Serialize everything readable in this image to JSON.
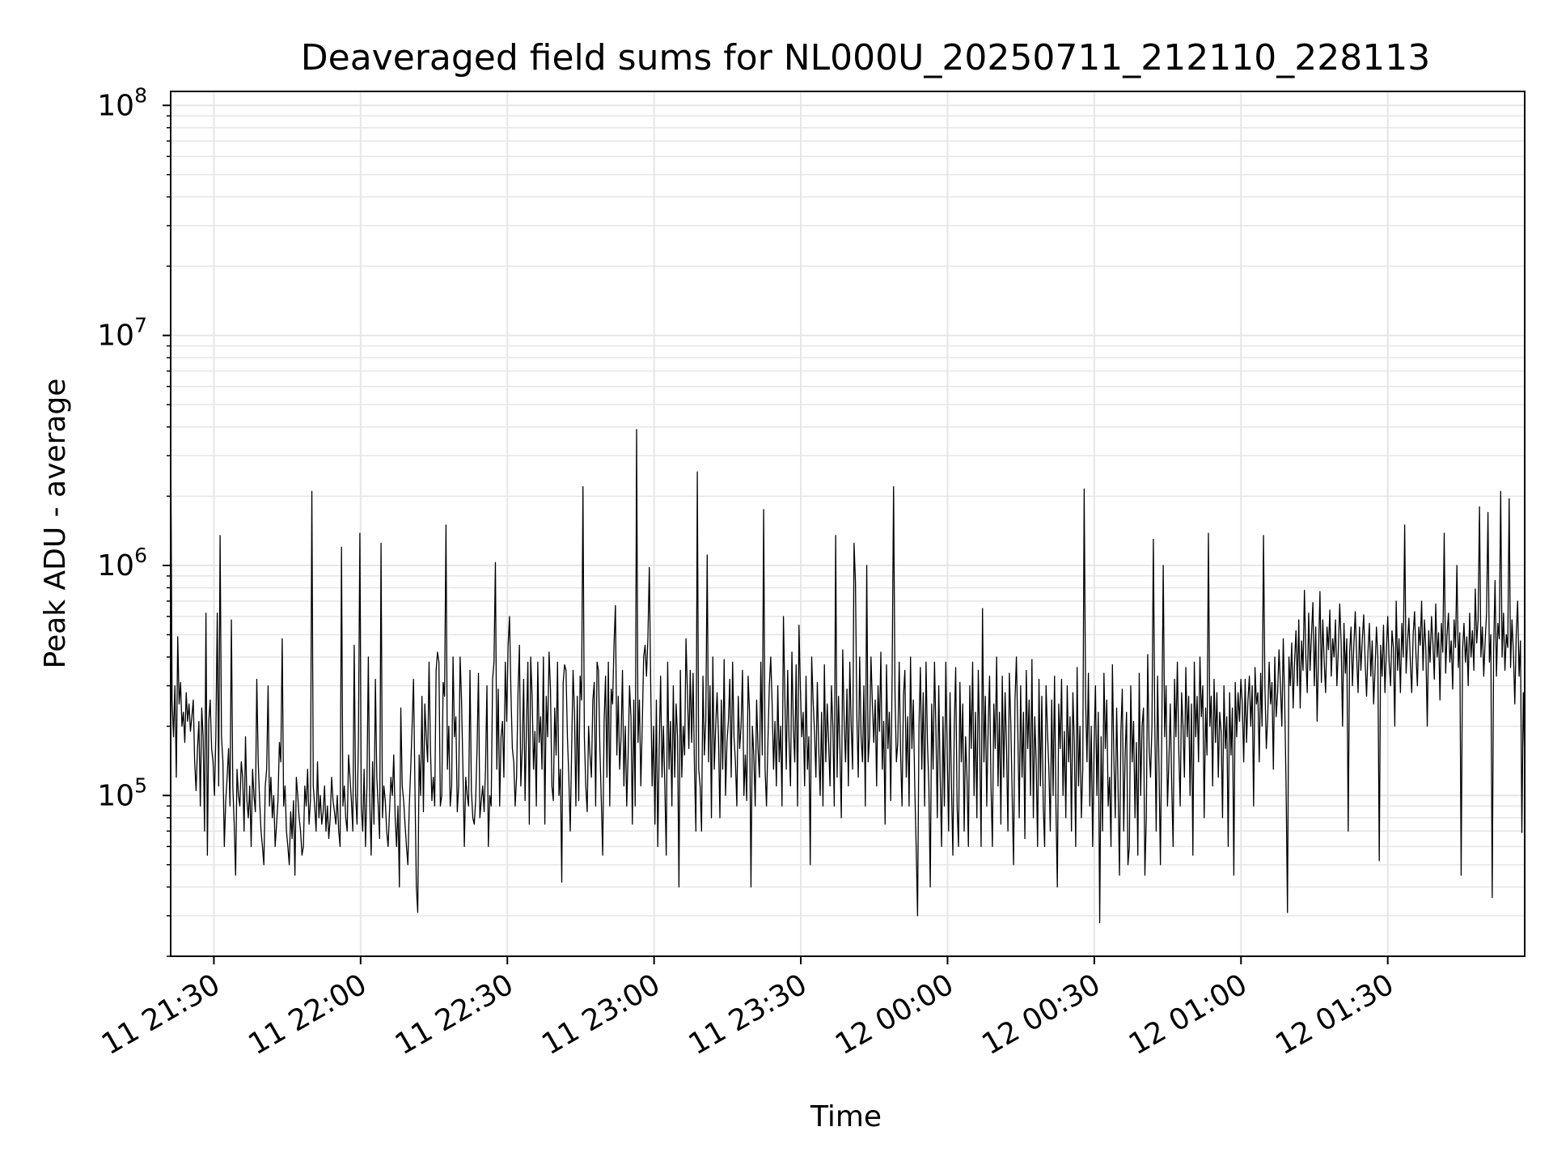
{
  "chart_data": {
    "type": "line",
    "title": "Deaveraged field sums for NL000U_20250711_212110_228113",
    "xlabel": "Time",
    "ylabel": "Peak ADU - average",
    "x_range": [
      "2025-07-11T21:21:10",
      "2025-07-12T01:58:00"
    ],
    "y_range": [
      20000,
      115000000
    ],
    "y_scale": "log",
    "grid": {
      "major": true,
      "minor_y": true,
      "color": "#e6e6e6"
    },
    "line_color": "#000000",
    "x_ticks": [
      {
        "value": "2025-07-11T21:30:00",
        "label": "11 21:30"
      },
      {
        "value": "2025-07-11T22:00:00",
        "label": "11 22:00"
      },
      {
        "value": "2025-07-11T22:30:00",
        "label": "11 22:30"
      },
      {
        "value": "2025-07-11T23:00:00",
        "label": "11 23:00"
      },
      {
        "value": "2025-07-11T23:30:00",
        "label": "11 23:30"
      },
      {
        "value": "2025-07-12T00:00:00",
        "label": "12 00:00"
      },
      {
        "value": "2025-07-12T00:30:00",
        "label": "12 00:30"
      },
      {
        "value": "2025-07-12T01:00:00",
        "label": "12 01:00"
      },
      {
        "value": "2025-07-12T01:30:00",
        "label": "12 01:30"
      }
    ],
    "y_ticks": [
      {
        "value": 100000,
        "base": "10",
        "exp": "5"
      },
      {
        "value": 1000000,
        "base": "10",
        "exp": "6"
      },
      {
        "value": 10000000,
        "base": "10",
        "exp": "7"
      },
      {
        "value": 100000000,
        "base": "10",
        "exp": "8"
      }
    ],
    "series": [
      {
        "x_start": "2025-07-11T21:21:10",
        "x_end": "2025-07-12T01:58:00",
        "values": [
          4300000,
          260000,
          180000,
          300000,
          120000,
          490000,
          250000,
          310000,
          200000,
          230000,
          170000,
          280000,
          210000,
          250000,
          190000,
          220000,
          260000,
          140000,
          105000,
          160000,
          210000,
          90000,
          240000,
          180000,
          70000,
          620000,
          55000,
          210000,
          260000,
          160000,
          140000,
          100000,
          180000,
          620000,
          110000,
          1350000,
          180000,
          140000,
          60000,
          95000,
          120000,
          160000,
          90000,
          580000,
          110000,
          75000,
          45000,
          130000,
          100000,
          90000,
          140000,
          120000,
          70000,
          180000,
          95000,
          80000,
          110000,
          60000,
          130000,
          100000,
          85000,
          320000,
          140000,
          95000,
          70000,
          60000,
          50000,
          110000,
          130000,
          300000,
          90000,
          120000,
          80000,
          100000,
          60000,
          75000,
          95000,
          170000,
          140000,
          480000,
          90000,
          110000,
          70000,
          60000,
          50000,
          85000,
          65000,
          95000,
          45000,
          120000,
          100000,
          80000,
          70000,
          55000,
          60000,
          110000,
          90000,
          130000,
          75000,
          95000,
          2100000,
          110000,
          90000,
          70000,
          140000,
          80000,
          100000,
          75000,
          85000,
          110000,
          70000,
          90000,
          65000,
          80000,
          120000,
          95000,
          85000,
          75000,
          100000,
          70000,
          60000,
          1200000,
          90000,
          110000,
          80000,
          70000,
          150000,
          120000,
          95000,
          70000,
          450000,
          100000,
          75000,
          180000,
          1380000,
          90000,
          70000,
          130000,
          60000,
          110000,
          400000,
          95000,
          55000,
          140000,
          75000,
          320000,
          120000,
          90000,
          65000,
          1250000,
          80000,
          110000,
          95000,
          70000,
          60000,
          85000,
          120000,
          100000,
          150000,
          80000,
          60000,
          90000,
          40000,
          240000,
          110000,
          95000,
          75000,
          60000,
          50000,
          90000,
          130000,
          200000,
          320000,
          110000,
          40000,
          31000,
          150000,
          100000,
          270000,
          85000,
          250000,
          180000,
          140000,
          380000,
          160000,
          95000,
          120000,
          90000,
          350000,
          420000,
          380000,
          90000,
          100000,
          310000,
          270000,
          1500000,
          130000,
          200000,
          90000,
          110000,
          400000,
          180000,
          220000,
          85000,
          110000,
          400000,
          260000,
          130000,
          60000,
          120000,
          100000,
          90000,
          350000,
          105000,
          80000,
          75000,
          95000,
          160000,
          340000,
          80000,
          95000,
          110000,
          85000,
          130000,
          300000,
          60000,
          100000,
          90000,
          320000,
          380000,
          1030000,
          130000,
          290000,
          90000,
          180000,
          210000,
          120000,
          380000,
          210000,
          450000,
          600000,
          280000,
          160000,
          140000,
          90000,
          120000,
          280000,
          450000,
          110000,
          160000,
          320000,
          95000,
          200000,
          380000,
          75000,
          400000,
          270000,
          130000,
          190000,
          90000,
          380000,
          170000,
          220000,
          130000,
          400000,
          75000,
          270000,
          180000,
          420000,
          290000,
          110000,
          95000,
          240000,
          150000,
          380000,
          100000,
          130000,
          42000,
          310000,
          370000,
          350000,
          180000,
          120000,
          70000,
          160000,
          350000,
          230000,
          90000,
          270000,
          95000,
          330000,
          260000,
          2200000,
          180000,
          110000,
          85000,
          200000,
          150000,
          120000,
          260000,
          310000,
          90000,
          380000,
          350000,
          160000,
          95000,
          55000,
          210000,
          330000,
          120000,
          380000,
          90000,
          290000,
          250000,
          450000,
          670000,
          150000,
          270000,
          130000,
          180000,
          350000,
          110000,
          200000,
          90000,
          150000,
          300000,
          220000,
          75000,
          260000,
          90000,
          3900000,
          170000,
          260000,
          110000,
          200000,
          400000,
          450000,
          330000,
          480000,
          980000,
          300000,
          110000,
          200000,
          75000,
          260000,
          60000,
          160000,
          330000,
          120000,
          200000,
          110000,
          55000,
          380000,
          130000,
          210000,
          90000,
          300000,
          120000,
          250000,
          180000,
          40000,
          350000,
          120000,
          200000,
          150000,
          480000,
          280000,
          160000,
          350000,
          170000,
          340000,
          130000,
          70000,
          2550000,
          130000,
          110000,
          70000,
          330000,
          150000,
          210000,
          1110000,
          140000,
          300000,
          80000,
          400000,
          130000,
          200000,
          280000,
          180000,
          80000,
          260000,
          130000,
          390000,
          100000,
          170000,
          210000,
          320000,
          120000,
          380000,
          180000,
          140000,
          90000,
          270000,
          160000,
          200000,
          350000,
          100000,
          150000,
          95000,
          330000,
          230000,
          40000,
          200000,
          150000,
          90000,
          260000,
          160000,
          120000,
          380000,
          150000,
          1750000,
          130000,
          90000,
          170000,
          300000,
          400000,
          250000,
          130000,
          210000,
          110000,
          300000,
          140000,
          200000,
          90000,
          600000,
          270000,
          130000,
          350000,
          170000,
          110000,
          420000,
          200000,
          140000,
          370000,
          90000,
          550000,
          290000,
          180000,
          230000,
          110000,
          330000,
          130000,
          180000,
          50000,
          400000,
          260000,
          190000,
          120000,
          310000,
          160000,
          100000,
          230000,
          90000,
          370000,
          140000,
          250000,
          170000,
          110000,
          300000,
          200000,
          90000,
          1350000,
          120000,
          270000,
          160000,
          80000,
          430000,
          210000,
          140000,
          290000,
          110000,
          380000,
          200000,
          130000,
          1250000,
          850000,
          220000,
          120000,
          400000,
          180000,
          140000,
          300000,
          90000,
          1000000,
          140000,
          180000,
          400000,
          250000,
          170000,
          260000,
          110000,
          300000,
          190000,
          420000,
          130000,
          210000,
          75000,
          370000,
          160000,
          230000,
          95000,
          340000,
          2200000,
          280000,
          140000,
          170000,
          380000,
          150000,
          90000,
          270000,
          350000,
          120000,
          220000,
          90000,
          400000,
          160000,
          260000,
          110000,
          60000,
          30000,
          200000,
          360000,
          130000,
          280000,
          90000,
          380000,
          170000,
          110000,
          40000,
          250000,
          130000,
          380000,
          190000,
          80000,
          300000,
          120000,
          60000,
          220000,
          90000,
          380000,
          150000,
          70000,
          280000,
          110000,
          55000,
          200000,
          360000,
          90000,
          60000,
          310000,
          140000,
          250000,
          70000,
          180000,
          120000,
          60000,
          300000,
          160000,
          380000,
          100000,
          230000,
          80000,
          350000,
          170000,
          60000,
          650000,
          140000,
          270000,
          90000,
          200000,
          330000,
          110000,
          60000,
          250000,
          160000,
          400000,
          110000,
          230000,
          75000,
          330000,
          120000,
          280000,
          160000,
          70000,
          340000,
          210000,
          100000,
          50000,
          260000,
          400000,
          190000,
          80000,
          300000,
          120000,
          230000,
          65000,
          350000,
          160000,
          260000,
          100000,
          390000,
          80000,
          220000,
          140000,
          60000,
          320000,
          110000,
          270000,
          90000,
          60000,
          300000,
          190000,
          130000,
          70000,
          260000,
          100000,
          330000,
          90000,
          40000,
          250000,
          160000,
          320000,
          100000,
          190000,
          80000,
          300000,
          140000,
          220000,
          70000,
          280000,
          170000,
          60000,
          360000,
          110000,
          200000,
          80000,
          130000,
          2150000,
          260000,
          140000,
          340000,
          90000,
          200000,
          60000,
          160000,
          300000,
          100000,
          230000,
          28000,
          180000,
          70000,
          340000,
          160000,
          260000,
          90000,
          120000,
          60000,
          370000,
          150000,
          80000,
          240000,
          110000,
          45000,
          190000,
          290000,
          70000,
          150000,
          230000,
          50000,
          60000,
          300000,
          140000,
          210000,
          80000,
          170000,
          55000,
          340000,
          100000,
          200000,
          240000,
          45000,
          80000,
          410000,
          160000,
          120000,
          200000,
          1300000,
          210000,
          70000,
          330000,
          130000,
          50000,
          200000,
          1000000,
          180000,
          300000,
          90000,
          140000,
          250000,
          110000,
          60000,
          320000,
          180000,
          380000,
          160000,
          90000,
          280000,
          200000,
          120000,
          360000,
          180000,
          270000,
          100000,
          250000,
          55000,
          380000,
          180000,
          270000,
          140000,
          400000,
          220000,
          300000,
          80000,
          240000,
          150000,
          1380000,
          200000,
          270000,
          110000,
          320000,
          170000,
          280000,
          120000,
          230000,
          190000,
          80000,
          300000,
          160000,
          220000,
          60000,
          280000,
          150000,
          240000,
          45000,
          310000,
          180000,
          280000,
          210000,
          320000,
          250000,
          140000,
          320000,
          170000,
          260000,
          330000,
          200000,
          300000,
          90000,
          360000,
          250000,
          280000,
          140000,
          340000,
          200000,
          1350000,
          300000,
          160000,
          220000,
          380000,
          250000,
          310000,
          130000,
          400000,
          220000,
          280000,
          430000,
          300000,
          200000,
          480000,
          260000,
          110000,
          31000,
          400000,
          300000,
          460000,
          240000,
          380000,
          520000,
          300000,
          580000,
          240000,
          470000,
          350000,
          780000,
          400000,
          280000,
          620000,
          350000,
          500000,
          690000,
          300000,
          540000,
          210000,
          420000,
          770000,
          310000,
          580000,
          380000,
          280000,
          540000,
          430000,
          640000,
          330000,
          480000,
          400000,
          580000,
          300000,
          430000,
          680000,
          460000,
          200000,
          560000,
          340000,
          480000,
          70000,
          420000,
          540000,
          300000,
          450000,
          630000,
          400000,
          280000,
          540000,
          350000,
          480000,
          610000,
          380000,
          270000,
          420000,
          560000,
          330000,
          470000,
          250000,
          350000,
          540000,
          400000,
          52000,
          450000,
          330000,
          550000,
          280000,
          420000,
          600000,
          380000,
          300000,
          520000,
          440000,
          200000,
          700000,
          350000,
          480000,
          280000,
          560000,
          400000,
          1500000,
          340000,
          460000,
          590000,
          380000,
          280000,
          500000,
          630000,
          410000,
          300000,
          540000,
          450000,
          700000,
          350000,
          580000,
          430000,
          200000,
          520000,
          380000,
          600000,
          460000,
          320000,
          680000,
          400000,
          510000,
          260000,
          560000,
          420000,
          1380000,
          340000,
          500000,
          620000,
          380000,
          470000,
          290000,
          580000,
          440000,
          1000000,
          360000,
          510000,
          45000,
          430000,
          560000,
          380000,
          490000,
          300000,
          620000,
          400000,
          520000,
          350000,
          790000,
          460000,
          580000,
          1800000,
          400000,
          540000,
          330000,
          470000,
          620000,
          1700000,
          380000,
          500000,
          36000,
          420000,
          860000,
          330000,
          560000,
          480000,
          2100000,
          400000,
          620000,
          350000,
          500000,
          440000,
          1950000,
          360000,
          580000,
          420000,
          250000,
          500000,
          700000,
          330000,
          470000,
          69000,
          280000,
          140000
        ]
      }
    ]
  }
}
